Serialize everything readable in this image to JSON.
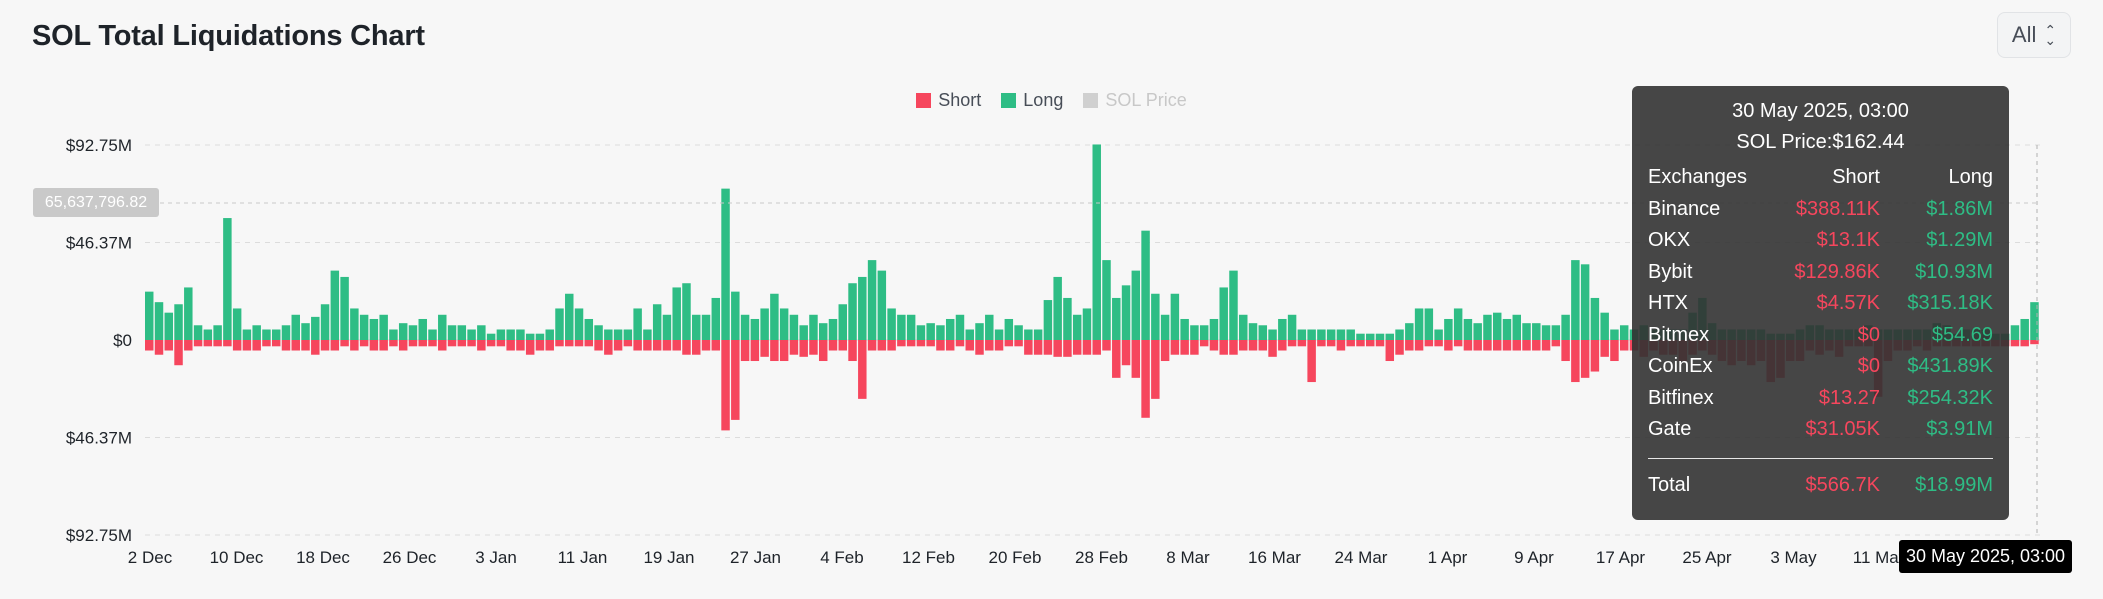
{
  "header": {
    "title": "SOL Total Liquidations Chart",
    "range_select": {
      "value": "All"
    }
  },
  "legend": [
    {
      "label": "Short",
      "color": "#f6465d",
      "enabled": true
    },
    {
      "label": "Long",
      "color": "#2ebd85",
      "enabled": true
    },
    {
      "label": "SOL Price",
      "color": "#d0d0d0",
      "enabled": false
    }
  ],
  "crosshair": {
    "y_value_label": "65,637,796.82",
    "x_value_label": "30 May 2025, 03:00"
  },
  "tooltip": {
    "date": "30 May 2025, 03:00",
    "price_label": "SOL Price:",
    "price_value": "$162.44",
    "headers": [
      "Exchanges",
      "Short",
      "Long"
    ],
    "rows": [
      {
        "exchange": "Binance",
        "short": "$388.11K",
        "long": "$1.86M"
      },
      {
        "exchange": "OKX",
        "short": "$13.1K",
        "long": "$1.29M"
      },
      {
        "exchange": "Bybit",
        "short": "$129.86K",
        "long": "$10.93M"
      },
      {
        "exchange": "HTX",
        "short": "$4.57K",
        "long": "$315.18K"
      },
      {
        "exchange": "Bitmex",
        "short": "$0",
        "long": "$54.69"
      },
      {
        "exchange": "CoinEx",
        "short": "$0",
        "long": "$431.89K"
      },
      {
        "exchange": "Bitfinex",
        "short": "$13.27",
        "long": "$254.32K"
      },
      {
        "exchange": "Gate",
        "short": "$31.05K",
        "long": "$3.91M"
      }
    ],
    "total": {
      "label": "Total",
      "short": "$566.7K",
      "long": "$18.99M"
    }
  },
  "chart_data": {
    "type": "bar",
    "title": "SOL Total Liquidations Chart",
    "colors": {
      "short": "#f6465d",
      "long": "#2ebd85",
      "grid": "#dcdcdc",
      "axis_text": "#1e2329"
    },
    "y_ticks": [
      "$92.75M",
      "$46.37M",
      "$0",
      "$46.37M",
      "$92.75M"
    ],
    "ylim": [
      -92.75,
      92.75
    ],
    "y_unit": "millions USD",
    "x_ticks": [
      "2 Dec",
      "10 Dec",
      "18 Dec",
      "26 Dec",
      "3 Jan",
      "11 Jan",
      "19 Jan",
      "27 Jan",
      "4 Feb",
      "12 Feb",
      "20 Feb",
      "28 Feb",
      "8 Mar",
      "16 Mar",
      "24 Mar",
      "1 Apr",
      "9 Apr",
      "17 Apr",
      "25 Apr",
      "3 May",
      "11 May"
    ],
    "series": [
      {
        "name": "Long",
        "values": [
          23,
          18,
          13,
          17,
          25,
          7,
          5,
          7,
          58,
          15,
          5,
          7,
          5,
          5,
          7,
          12,
          8,
          11,
          17,
          33,
          30,
          15,
          12,
          10,
          12,
          5,
          8,
          7,
          10,
          5,
          12,
          7,
          7,
          5,
          7,
          3,
          5,
          5,
          5,
          3,
          3,
          5,
          15,
          22,
          15,
          10,
          7,
          5,
          5,
          5,
          15,
          5,
          17,
          12,
          25,
          27,
          12,
          12,
          20,
          72,
          23,
          12,
          10,
          15,
          22,
          15,
          12,
          7,
          12,
          8,
          10,
          17,
          27,
          30,
          38,
          33,
          15,
          12,
          12,
          7,
          8,
          7,
          10,
          12,
          5,
          8,
          12,
          5,
          10,
          7,
          5,
          5,
          19,
          30,
          20,
          12,
          15,
          93,
          38,
          20,
          26,
          33,
          52,
          22,
          12,
          22,
          10,
          7,
          7,
          10,
          25,
          33,
          12,
          8,
          7,
          5,
          10,
          12,
          5,
          5,
          5,
          5,
          5,
          5,
          3,
          3,
          3,
          3,
          5,
          8,
          15,
          15,
          5,
          10,
          15,
          10,
          8,
          12,
          13,
          10,
          12,
          8,
          8,
          7,
          7,
          12,
          38,
          36,
          20,
          13,
          5,
          7,
          5,
          7,
          5,
          5,
          5,
          5,
          13,
          20,
          8,
          5,
          5,
          5,
          5,
          5,
          3,
          3,
          3,
          5,
          7,
          7,
          5,
          5,
          5,
          5,
          7,
          5,
          5,
          5,
          5,
          5,
          5,
          8,
          7,
          3,
          5,
          5,
          5,
          3,
          3,
          7,
          10,
          18
        ]
      },
      {
        "name": "Short",
        "values": [
          5,
          7,
          5,
          12,
          5,
          3,
          3,
          3,
          3,
          5,
          5,
          5,
          3,
          3,
          5,
          5,
          5,
          7,
          5,
          5,
          3,
          5,
          3,
          5,
          5,
          3,
          5,
          3,
          3,
          3,
          5,
          3,
          3,
          3,
          5,
          3,
          3,
          5,
          5,
          7,
          5,
          5,
          3,
          3,
          3,
          3,
          5,
          7,
          5,
          3,
          5,
          5,
          5,
          5,
          5,
          7,
          7,
          5,
          5,
          43,
          38,
          10,
          10,
          8,
          10,
          10,
          7,
          8,
          7,
          10,
          5,
          5,
          10,
          28,
          5,
          5,
          5,
          3,
          3,
          3,
          3,
          5,
          5,
          3,
          5,
          7,
          5,
          5,
          3,
          3,
          7,
          7,
          7,
          8,
          8,
          7,
          7,
          7,
          5,
          18,
          12,
          18,
          37,
          28,
          10,
          7,
          7,
          7,
          3,
          5,
          7,
          7,
          5,
          5,
          5,
          8,
          5,
          3,
          3,
          20,
          3,
          3,
          5,
          3,
          3,
          3,
          3,
          10,
          7,
          5,
          5,
          3,
          3,
          5,
          3,
          5,
          5,
          5,
          5,
          5,
          5,
          5,
          5,
          5,
          3,
          10,
          20,
          18,
          15,
          8,
          10,
          5,
          5,
          8,
          5,
          7,
          7,
          10,
          7,
          5,
          7,
          10,
          12,
          10,
          12,
          10,
          20,
          18,
          10,
          10,
          5,
          7,
          5,
          8,
          3,
          3,
          3,
          27,
          10,
          5,
          5,
          3,
          5,
          3,
          3,
          3,
          3,
          3,
          3,
          3,
          3,
          3,
          3,
          2
        ]
      }
    ]
  }
}
